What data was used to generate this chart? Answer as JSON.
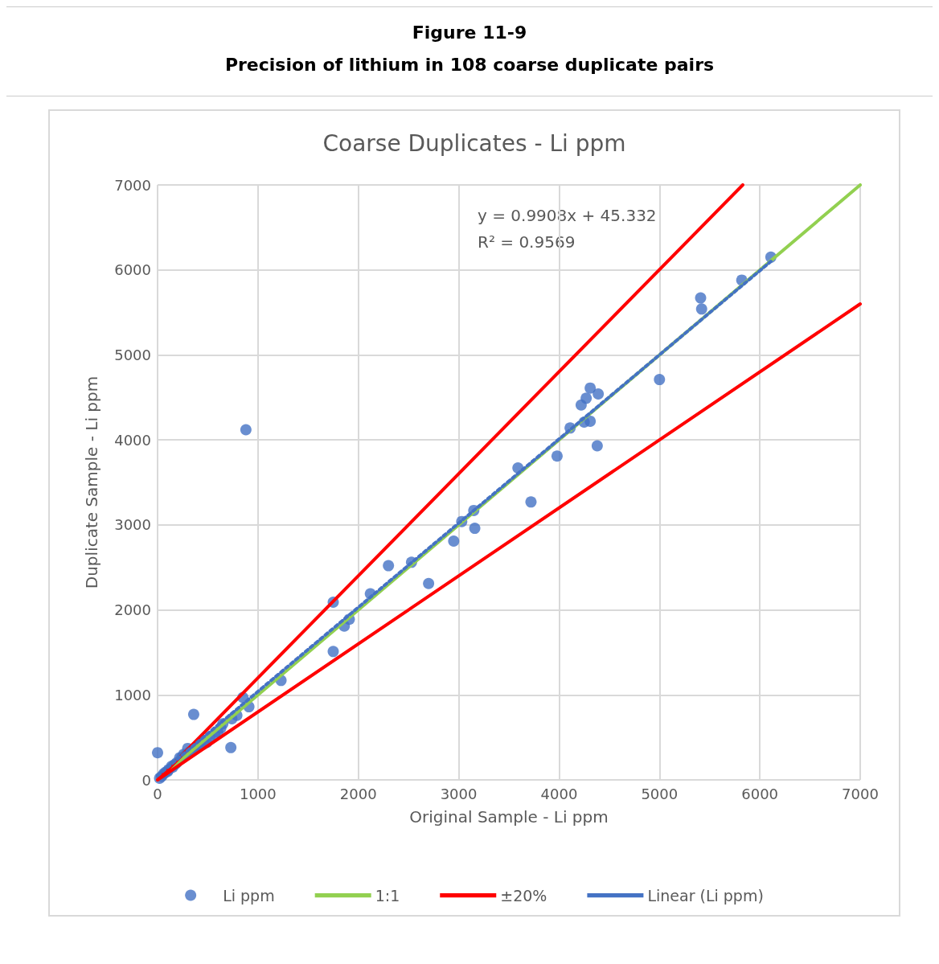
{
  "chart_data": {
    "type": "scatter",
    "title": "Figure 11-9",
    "subtitle": "Precision of lithium in 108 coarse duplicate pairs",
    "annotations": [
      "Coarse Duplicates - Li ppm",
      "y = 0.9908x + 45.332",
      "R² = 0.9569"
    ],
    "xlabel": "Original Sample - Li ppm",
    "ylabel": "Duplicate Sample - Li ppm",
    "xlim": [
      0,
      7000
    ],
    "ylim": [
      0,
      7000
    ],
    "xticks": [
      0,
      1000,
      2000,
      3000,
      4000,
      5000,
      6000,
      7000
    ],
    "yticks": [
      0,
      1000,
      2000,
      3000,
      4000,
      5000,
      6000,
      7000
    ],
    "grid": true,
    "legend": "bottom",
    "series": [
      {
        "name": "Li ppm",
        "color": "#4472c4",
        "marker": "circle",
        "x": [
          880,
          5820,
          6110,
          5410,
          5420,
          5000,
          4310,
          4270,
          4220,
          4390,
          4310,
          4250,
          4110,
          4380,
          3980,
          3590,
          3720,
          3150,
          3030,
          3160,
          2950,
          2700,
          2530,
          2300,
          2120,
          1910,
          1860,
          1750,
          1750,
          1230,
          850,
          910,
          790,
          740,
          360,
          730,
          0,
          20,
          40,
          60,
          80,
          100,
          110,
          140,
          150,
          170,
          190,
          220,
          240,
          260,
          280,
          300,
          320,
          350,
          380,
          400,
          430,
          460,
          490,
          520,
          570,
          600,
          630,
          650
        ],
        "values": [
          4120,
          5880,
          6150,
          5670,
          5540,
          4710,
          4610,
          4490,
          4410,
          4540,
          4220,
          4210,
          4140,
          3930,
          3810,
          3670,
          3270,
          3170,
          3040,
          2960,
          2810,
          2310,
          2560,
          2520,
          2190,
          1890,
          1810,
          2090,
          1510,
          1170,
          970,
          860,
          760,
          720,
          770,
          380,
          320,
          20,
          40,
          70,
          90,
          100,
          120,
          160,
          150,
          180,
          200,
          260,
          260,
          300,
          290,
          370,
          330,
          350,
          380,
          400,
          410,
          450,
          440,
          500,
          530,
          560,
          610,
          660
        ]
      },
      {
        "name": "1:1",
        "type": "line",
        "color": "#92d050",
        "marker": "none",
        "line_style": "solid",
        "x": [
          0,
          7000
        ],
        "values": [
          0,
          7000
        ]
      },
      {
        "name": "±20%",
        "type": "line",
        "color": "#ff0000",
        "marker": "none",
        "line_style": "solid",
        "x": [
          0,
          5830,
          null,
          0,
          7000
        ],
        "values": [
          0,
          7000,
          null,
          0,
          5600
        ]
      },
      {
        "name": "Linear (Li ppm)",
        "type": "line",
        "color": "#4472c4",
        "marker": "none",
        "line_style": "dotted",
        "x": [
          0,
          6110
        ],
        "values": [
          50,
          6100
        ]
      }
    ]
  }
}
